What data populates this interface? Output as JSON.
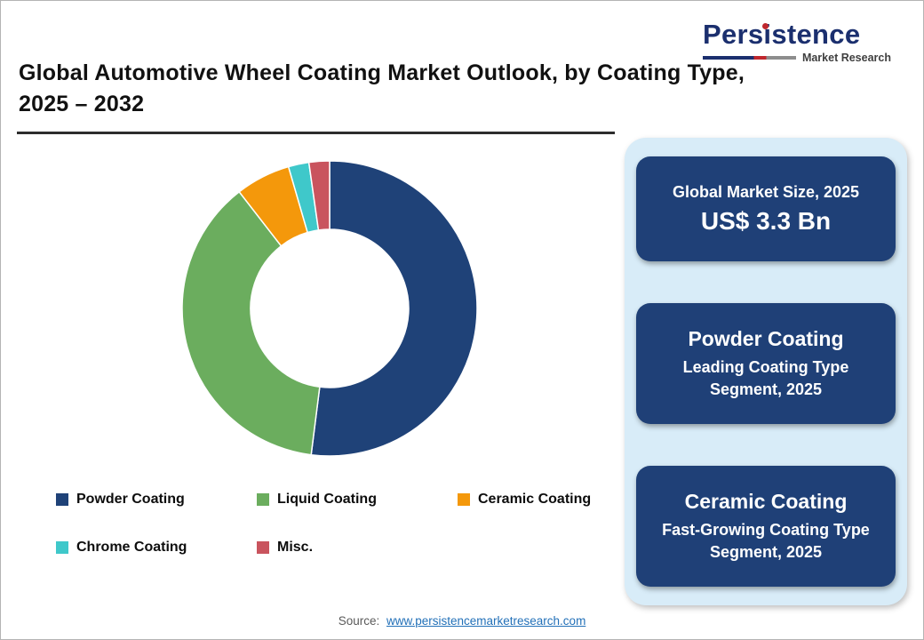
{
  "header": {
    "title_line1": "Global Automotive Wheel Coating Market Outlook, by Coating Type,",
    "title_line2": "2025 – 2032",
    "logo": {
      "brand": "Persistence",
      "subtitle": "Market Research"
    }
  },
  "chart_data": {
    "type": "pie",
    "donut": true,
    "title": "Global Automotive Wheel Coating Market Outlook, by Coating Type, 2025 – 2032",
    "categories": [
      "Powder Coating",
      "Liquid Coating",
      "Ceramic Coating",
      "Chrome Coating",
      "Misc."
    ],
    "values": [
      52,
      37.5,
      6,
      2.25,
      2.25
    ],
    "unit": "%",
    "colors": [
      "#1f4278",
      "#6bad5e",
      "#f4980b",
      "#3fc8ca",
      "#c9545e"
    ],
    "legend_position": "bottom",
    "start_angle_deg": 0,
    "direction": "clockwise"
  },
  "sidebar": {
    "cards": [
      {
        "line1": "Global Market Size, 2025",
        "line2": "US$ 3.3 Bn"
      },
      {
        "line1": "Powder Coating",
        "line2": "Leading Coating Type Segment, 2025"
      },
      {
        "line1": "Ceramic Coating",
        "line2": "Fast-Growing Coating Type Segment, 2025"
      }
    ]
  },
  "footer": {
    "label": "Source:",
    "link": "www.persistencemarketresearch.com"
  },
  "theme": {
    "panel_bg": "#d8ecf8",
    "card_bg": "#1f4077",
    "card_text": "#ffffff",
    "brand_navy": "#1b2f6e",
    "brand_red": "#c0272d",
    "brand_gray": "#8d8d8d",
    "link_blue": "#2270b8",
    "title_color": "#111111"
  }
}
